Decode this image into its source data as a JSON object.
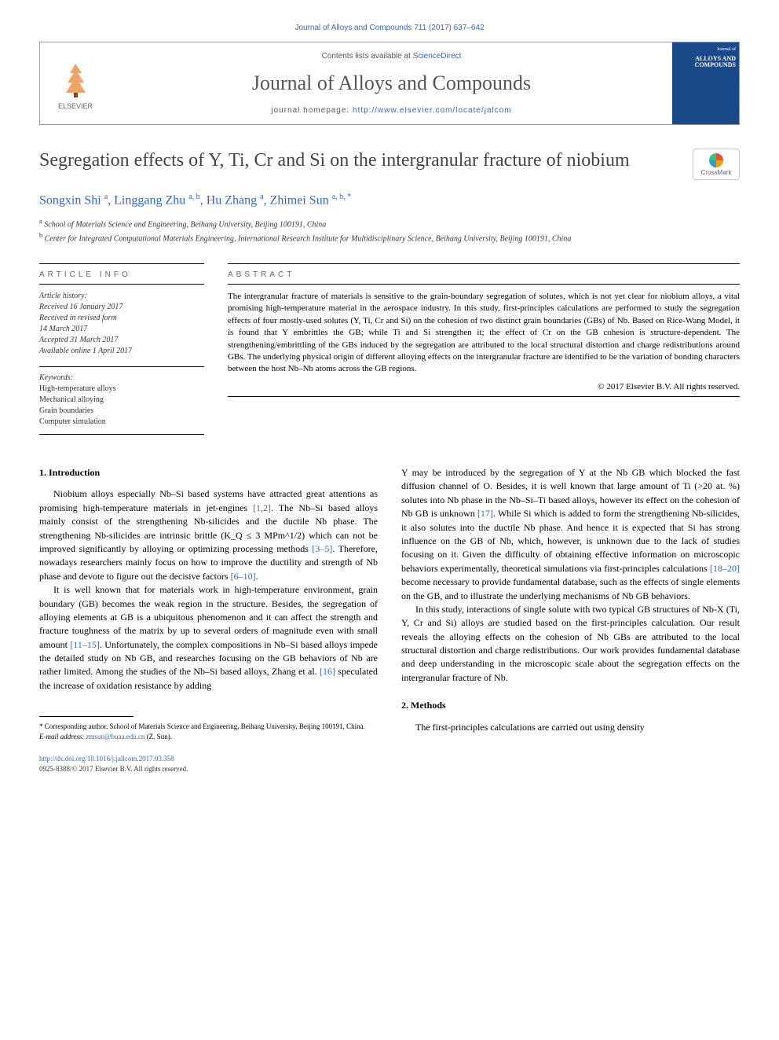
{
  "citation": "Journal of Alloys and Compounds 711 (2017) 637–642",
  "header": {
    "contents_prefix": "Contents lists available at ",
    "contents_link": "ScienceDirect",
    "journal_name": "Journal of Alloys and Compounds",
    "homepage_prefix": "journal homepage: ",
    "homepage_url": "http://www.elsevier.com/locate/jalcom",
    "publisher": "ELSEVIER",
    "cover_journal": "Journal of",
    "cover_title": "ALLOYS AND COMPOUNDS"
  },
  "article": {
    "title": "Segregation effects of Y, Ti, Cr and Si on the intergranular fracture of niobium",
    "crossmark": "CrossMark",
    "authors_html": "Songxin Shi <sup>a</sup>, Linggang Zhu <sup>a, b</sup>, Hu Zhang <sup>a</sup>, Zhimei Sun <sup>a, b, *</sup>",
    "affiliations": [
      {
        "sup": "a",
        "text": "School of Materials Science and Engineering, Beihang University, Beijing 100191, China"
      },
      {
        "sup": "b",
        "text": "Center for Integrated Computational Materials Engineering, International Research Institute for Multidisciplinary Science, Beihang University, Beijing 100191, China"
      }
    ]
  },
  "info": {
    "header": "ARTICLE INFO",
    "history_label": "Article history:",
    "history": [
      "Received 16 January 2017",
      "Received in revised form",
      "14 March 2017",
      "Accepted 31 March 2017",
      "Available online 1 April 2017"
    ],
    "keywords_label": "Keywords:",
    "keywords": [
      "High-temperature alloys",
      "Mechanical alloying",
      "Grain boundaries",
      "Computer simulation"
    ]
  },
  "abstract": {
    "header": "ABSTRACT",
    "text": "The intergranular fracture of materials is sensitive to the grain-boundary segregation of solutes, which is not yet clear for niobium alloys, a vital promising high-temperature material in the aerospace industry. In this study, first-principles calculations are performed to study the segregation effects of four mostly-used solutes (Y, Ti, Cr and Si) on the cohesion of two distinct grain boundaries (GBs) of Nb. Based on Rice-Wang Model, it is found that Y embrittles the GB; while Ti and Si strengthen it; the effect of Cr on the GB cohesion is structure-dependent. The strengthening/embrittling of the GBs induced by the segregation are attributed to the local structural distortion and charge redistributions around GBs. The underlying physical origin of different alloying effects on the intergranular fracture are identified to be the variation of bonding characters between the host Nb–Nb atoms across the GB regions.",
    "copyright": "© 2017 Elsevier B.V. All rights reserved."
  },
  "body": {
    "section1_title": "1. Introduction",
    "col1_p1": "Niobium alloys especially Nb–Si based systems have attracted great attentions as promising high-temperature materials in jet-engines [1,2]. The Nb–Si based alloys mainly consist of the strengthening Nb-silicides and the ductile Nb phase. The strengthening Nb-silicides are intrinsic brittle (K_Q ≤ 3 MPm^1/2) which can not be improved significantly by alloying or optimizing processing methods [3–5]. Therefore, nowadays researchers mainly focus on how to improve the ductility and strength of Nb phase and devote to figure out the decisive factors [6–10].",
    "col1_p2": "It is well known that for materials work in high-temperature environment, grain boundary (GB) becomes the weak region in the structure. Besides, the segregation of alloying elements at GB is a ubiquitous phenomenon and it can affect the strength and fracture toughness of the matrix by up to several orders of magnitude even with small amount [11–15]. Unfortunately, the complex compositions in Nb–Si based alloys impede the detailed study on Nb GB, and researches focusing on the GB behaviors of Nb are rather limited. Among the studies of the Nb–Si based alloys, Zhang et al. [16] speculated the increase of oxidation resistance by adding",
    "col2_p1": "Y may be introduced by the segregation of Y at the Nb GB which blocked the fast diffusion channel of O. Besides, it is well known that large amount of Ti (>20 at. %) solutes into Nb phase in the Nb–Si–Ti based alloys, however its effect on the cohesion of Nb GB is unknown [17]. While Si which is added to form the strengthening Nb-silicides, it also solutes into the ductile Nb phase. And hence it is expected that Si has strong influence on the GB of Nb, which, however, is unknown due to the lack of studies focusing on it. Given the difficulty of obtaining effective information on microscopic behaviors experimentally, theoretical simulations via first-principles calculations [18–20] become necessary to provide fundamental database, such as the effects of single elements on the GB, and to illustrate the underlying mechanisms of Nb GB behaviors.",
    "col2_p2": "In this study, interactions of single solute with two typical GB structures of Nb-X (Ti, Y, Cr and Si) alloys are studied based on the first-principles calculation. Our result reveals the alloying effects on the cohesion of Nb GBs are attributed to the local structural distortion and charge redistributions. Our work provides fundamental database and deep understanding in the microscopic scale about the segregation effects on the intergranular fracture of Nb.",
    "section2_title": "2. Methods",
    "col2_p3": "The first-principles calculations are carried out using density"
  },
  "footnote": {
    "corr": "* Corresponding author. School of Materials Science and Engineering, Beihang University, Beijing 100191, China.",
    "email_label": "E-mail address: ",
    "email": "zmsun@buaa.edu.cn",
    "email_suffix": " (Z. Sun)."
  },
  "footer": {
    "doi": "http://dx.doi.org/10.1016/j.jallcom.2017.03.358",
    "issn": "0925-8388/© 2017 Elsevier B.V. All rights reserved."
  },
  "colors": {
    "link": "#3366cc",
    "text": "#000000",
    "muted": "#666666",
    "cover_bg": "#1b4a8a"
  }
}
